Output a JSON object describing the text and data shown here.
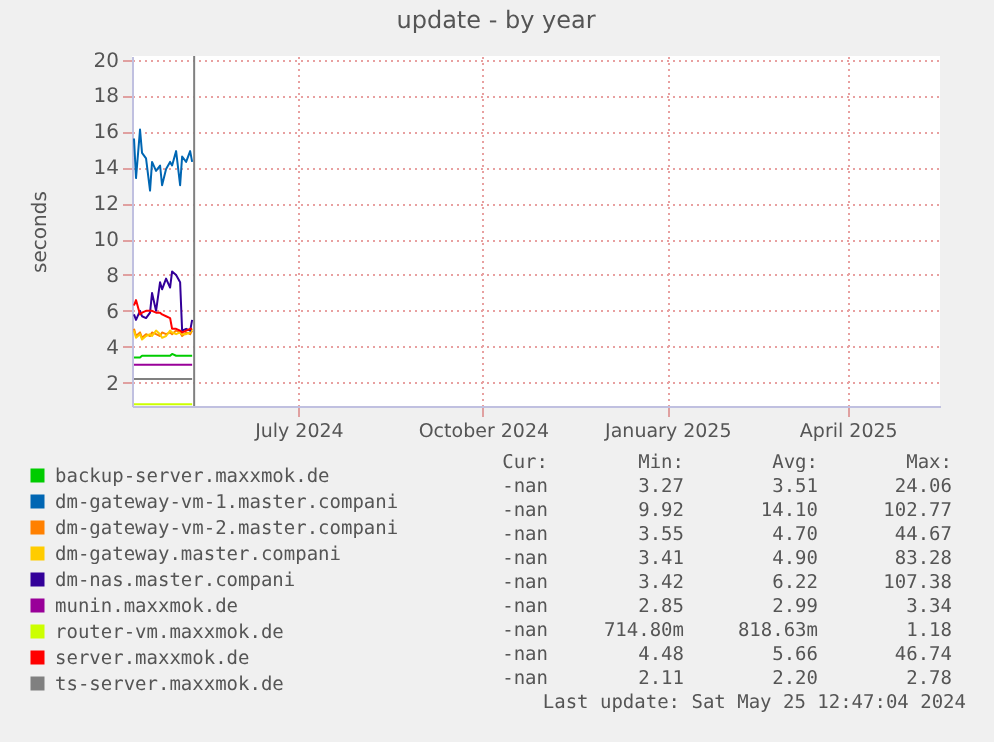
{
  "chart_data": {
    "type": "line",
    "title": "update - by year",
    "ylabel": "seconds",
    "x": [
      "2024-04-25",
      "2024-04-26",
      "2024-04-28",
      "2024-04-29",
      "2024-05-01",
      "2024-05-03",
      "2024-05-04",
      "2024-05-06",
      "2024-05-08",
      "2024-05-09",
      "2024-05-11",
      "2024-05-13",
      "2024-05-14",
      "2024-05-16",
      "2024-05-18",
      "2024-05-19",
      "2024-05-21",
      "2024-05-23",
      "2024-05-24"
    ],
    "xlim": [
      "2024-04-24",
      "2025-06-01"
    ],
    "xticks": [
      {
        "value": "2024-07-16",
        "label": "July 2024"
      },
      {
        "value": "2024-10-16",
        "label": "October 2024"
      },
      {
        "value": "2025-01-16",
        "label": "January 2025"
      },
      {
        "value": "2025-04-16",
        "label": "April 2025"
      }
    ],
    "ylim": [
      0.7,
      20.2
    ],
    "yticks": [
      2,
      4,
      6,
      8,
      10,
      12,
      14,
      16,
      18,
      20
    ],
    "grid": true,
    "legend": "bottom left",
    "series": [
      {
        "name": "backup-server.maxxmok.de",
        "color": "#00cc00",
        "values": [
          3.4,
          3.4,
          3.4,
          3.5,
          3.5,
          3.5,
          3.5,
          3.5,
          3.5,
          3.5,
          3.5,
          3.5,
          3.6,
          3.5,
          3.5,
          3.5,
          3.5,
          3.5,
          3.5
        ]
      },
      {
        "name": "dm-gateway-vm-1.master.compani",
        "color": "#0066b3",
        "values": [
          15.6,
          13.4,
          16.1,
          14.8,
          14.5,
          12.7,
          14.3,
          13.8,
          14.1,
          13.0,
          13.9,
          14.3,
          14.1,
          14.9,
          13.0,
          14.6,
          14.3,
          14.9,
          14.3
        ]
      },
      {
        "name": "dm-gateway-vm-2.master.compani",
        "color": "#ff8000",
        "values": [
          5.0,
          4.6,
          4.8,
          4.5,
          4.7,
          4.6,
          4.8,
          4.7,
          4.6,
          4.8,
          4.7,
          4.8,
          4.7,
          4.9,
          4.8,
          4.6,
          4.8,
          4.7,
          4.9
        ]
      },
      {
        "name": "dm-gateway.master.compani",
        "color": "#ffcc00",
        "values": [
          4.9,
          4.5,
          4.7,
          4.4,
          4.6,
          4.7,
          4.6,
          4.9,
          4.7,
          4.5,
          4.6,
          4.9,
          4.8,
          4.7,
          4.8,
          4.7,
          4.7,
          4.8,
          5.0
        ]
      },
      {
        "name": "dm-nas.master.compani",
        "color": "#330099",
        "values": [
          5.8,
          5.5,
          6.0,
          5.7,
          5.6,
          5.9,
          7.0,
          6.0,
          7.6,
          7.2,
          7.8,
          7.3,
          8.2,
          8.0,
          7.6,
          4.9,
          5.0,
          4.9,
          5.5
        ]
      },
      {
        "name": "munin.maxxmok.de",
        "color": "#990099",
        "values": [
          3.0,
          3.0,
          3.0,
          3.0,
          3.0,
          3.0,
          3.0,
          3.0,
          3.0,
          3.0,
          3.0,
          3.0,
          3.0,
          3.0,
          3.0,
          3.0,
          3.0,
          3.0,
          3.0
        ]
      },
      {
        "name": "router-vm.maxxmok.de",
        "color": "#ccff00",
        "values": [
          0.8,
          0.8,
          0.8,
          0.8,
          0.8,
          0.8,
          0.8,
          0.8,
          0.8,
          0.8,
          0.8,
          0.8,
          0.8,
          0.8,
          0.8,
          0.8,
          0.8,
          0.8,
          0.8
        ]
      },
      {
        "name": "server.maxxmok.de",
        "color": "#ff0000",
        "values": [
          6.3,
          6.6,
          5.8,
          5.9,
          6.0,
          6.0,
          6.0,
          5.9,
          5.9,
          5.8,
          5.7,
          5.6,
          5.0,
          5.0,
          4.9,
          4.8,
          4.9,
          5.0,
          5.0
        ]
      },
      {
        "name": "ts-server.maxxmok.de",
        "color": "#808080",
        "values": [
          2.2,
          2.2,
          2.2,
          2.2,
          2.2,
          2.2,
          2.2,
          2.2,
          2.2,
          2.2,
          2.2,
          2.2,
          2.2,
          2.2,
          2.2,
          2.2,
          2.2,
          2.2,
          2.2
        ]
      }
    ],
    "ref_lines": [
      {
        "axis": "x",
        "value": "2024-05-25",
        "color": "#808080"
      }
    ],
    "annotations": [
      "Cur:",
      "Min:",
      "Avg:",
      "Max:",
      "-nan",
      "3.27",
      "3.51",
      "24.06",
      "-nan",
      "9.92",
      "14.10",
      "102.77",
      "-nan",
      "3.55",
      "4.70",
      "44.67",
      "-nan",
      "3.41",
      "4.90",
      "83.28",
      "-nan",
      "3.42",
      "6.22",
      "107.38",
      "-nan",
      "2.85",
      "2.99",
      "3.34",
      "-nan",
      "714.80m",
      "818.63m",
      "1.18",
      "-nan",
      "4.48",
      "5.66",
      "46.74",
      "-nan",
      "2.11",
      "2.20",
      "2.78",
      "Last update: Sat May 25 12:47:04 2024"
    ]
  }
}
